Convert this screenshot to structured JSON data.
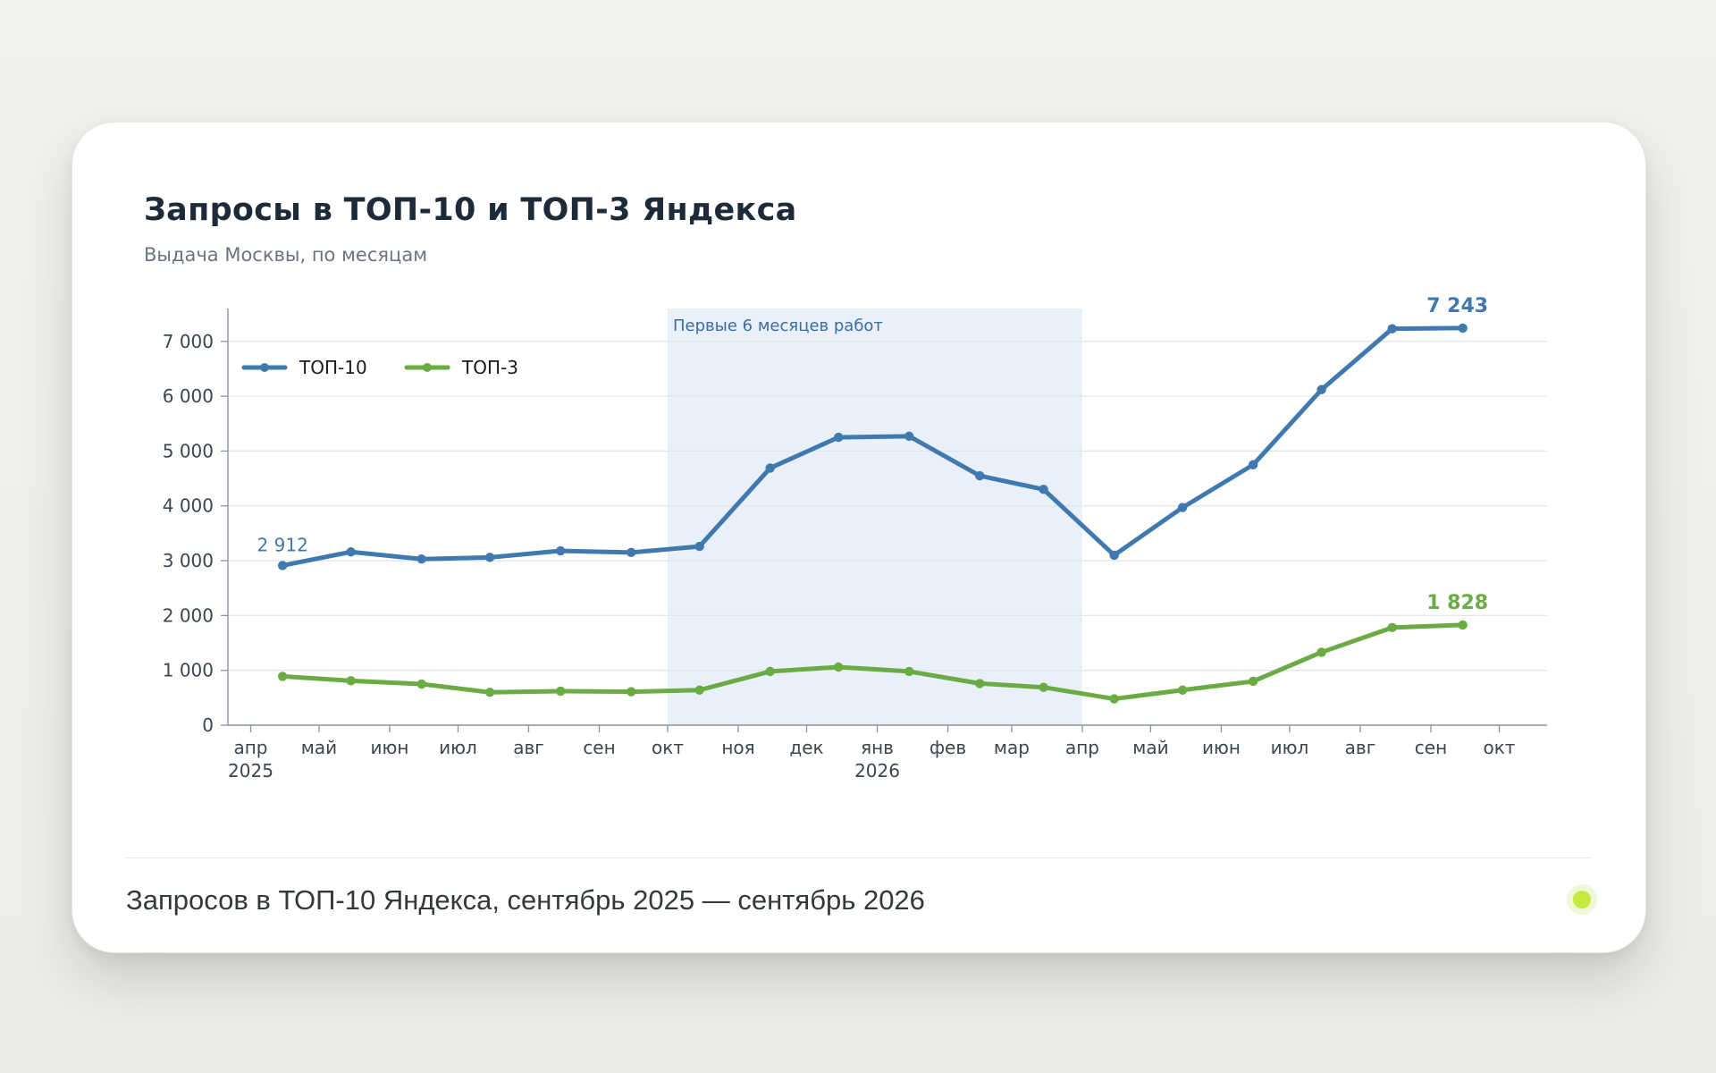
{
  "chart_data": {
    "type": "line",
    "title": "Запросы в ТОП-10 и ТОП-3 Яндекса",
    "subtitle": "Выдача Москвы, по месяцам",
    "xlabel": "",
    "ylabel": "",
    "x": [
      "2025-04-15",
      "2025-05-15",
      "2025-06-15",
      "2025-07-15",
      "2025-08-15",
      "2025-09-15",
      "2025-10-15",
      "2025-11-15",
      "2025-12-15",
      "2026-01-15",
      "2026-02-15",
      "2026-03-15",
      "2026-04-15",
      "2026-05-15",
      "2026-06-15",
      "2026-07-15",
      "2026-08-15",
      "2026-09-15"
    ],
    "series": [
      {
        "name": "ТОП-10",
        "color": "#4079b0",
        "values": [
          2912,
          3160,
          3030,
          3060,
          3180,
          3150,
          3260,
          4690,
          5250,
          5270,
          4550,
          4300,
          3100,
          3970,
          4750,
          6120,
          7230,
          7243
        ]
      },
      {
        "name": "ТОП-3",
        "color": "#6aab43",
        "values": [
          890,
          810,
          750,
          600,
          620,
          610,
          640,
          980,
          1060,
          980,
          760,
          690,
          480,
          640,
          800,
          1330,
          1780,
          1828
        ]
      }
    ],
    "annotations": {
      "start_label": "2 912",
      "end_label_top10": "7 243",
      "end_label_top3": "1 828"
    },
    "highlight": {
      "label": "Первые 6 месяцев работ",
      "from": "2025-10-01",
      "to": "2026-04-01",
      "color": "#e9f0f9"
    },
    "yticks": [
      0,
      1000,
      2000,
      3000,
      4000,
      5000,
      6000,
      7000
    ],
    "ytick_labels": [
      "0",
      "1 000",
      "2 000",
      "3 000",
      "4 000",
      "5 000",
      "6 000",
      "7 000"
    ],
    "ylim": [
      0,
      7600
    ],
    "xlim": [
      "2025-03-22",
      "2026-10-22"
    ],
    "xticks": [
      {
        "date": "2025-04-01",
        "label": "апр",
        "year": "2025"
      },
      {
        "date": "2025-05-01",
        "label": "май",
        "year": ""
      },
      {
        "date": "2025-06-01",
        "label": "июн",
        "year": ""
      },
      {
        "date": "2025-07-01",
        "label": "июл",
        "year": ""
      },
      {
        "date": "2025-08-01",
        "label": "авг",
        "year": ""
      },
      {
        "date": "2025-09-01",
        "label": "сен",
        "year": ""
      },
      {
        "date": "2025-10-01",
        "label": "окт",
        "year": ""
      },
      {
        "date": "2025-11-01",
        "label": "ноя",
        "year": ""
      },
      {
        "date": "2025-12-01",
        "label": "дек",
        "year": ""
      },
      {
        "date": "2026-01-01",
        "label": "янв",
        "year": "2026"
      },
      {
        "date": "2026-02-01",
        "label": "фев",
        "year": ""
      },
      {
        "date": "2026-03-01",
        "label": "мар",
        "year": ""
      },
      {
        "date": "2026-04-01",
        "label": "апр",
        "year": ""
      },
      {
        "date": "2026-05-01",
        "label": "май",
        "year": ""
      },
      {
        "date": "2026-06-01",
        "label": "июн",
        "year": ""
      },
      {
        "date": "2026-07-01",
        "label": "июл",
        "year": ""
      },
      {
        "date": "2026-08-01",
        "label": "авг",
        "year": ""
      },
      {
        "date": "2026-09-01",
        "label": "сен",
        "year": ""
      },
      {
        "date": "2026-10-01",
        "label": "окт",
        "year": ""
      }
    ],
    "legend": "top-left",
    "grid": true
  },
  "footer": {
    "text": "Запросов в ТОП-10 Яндекса, сентябрь 2025 — сентябрь 2026",
    "status_color": "#c6ea40"
  }
}
